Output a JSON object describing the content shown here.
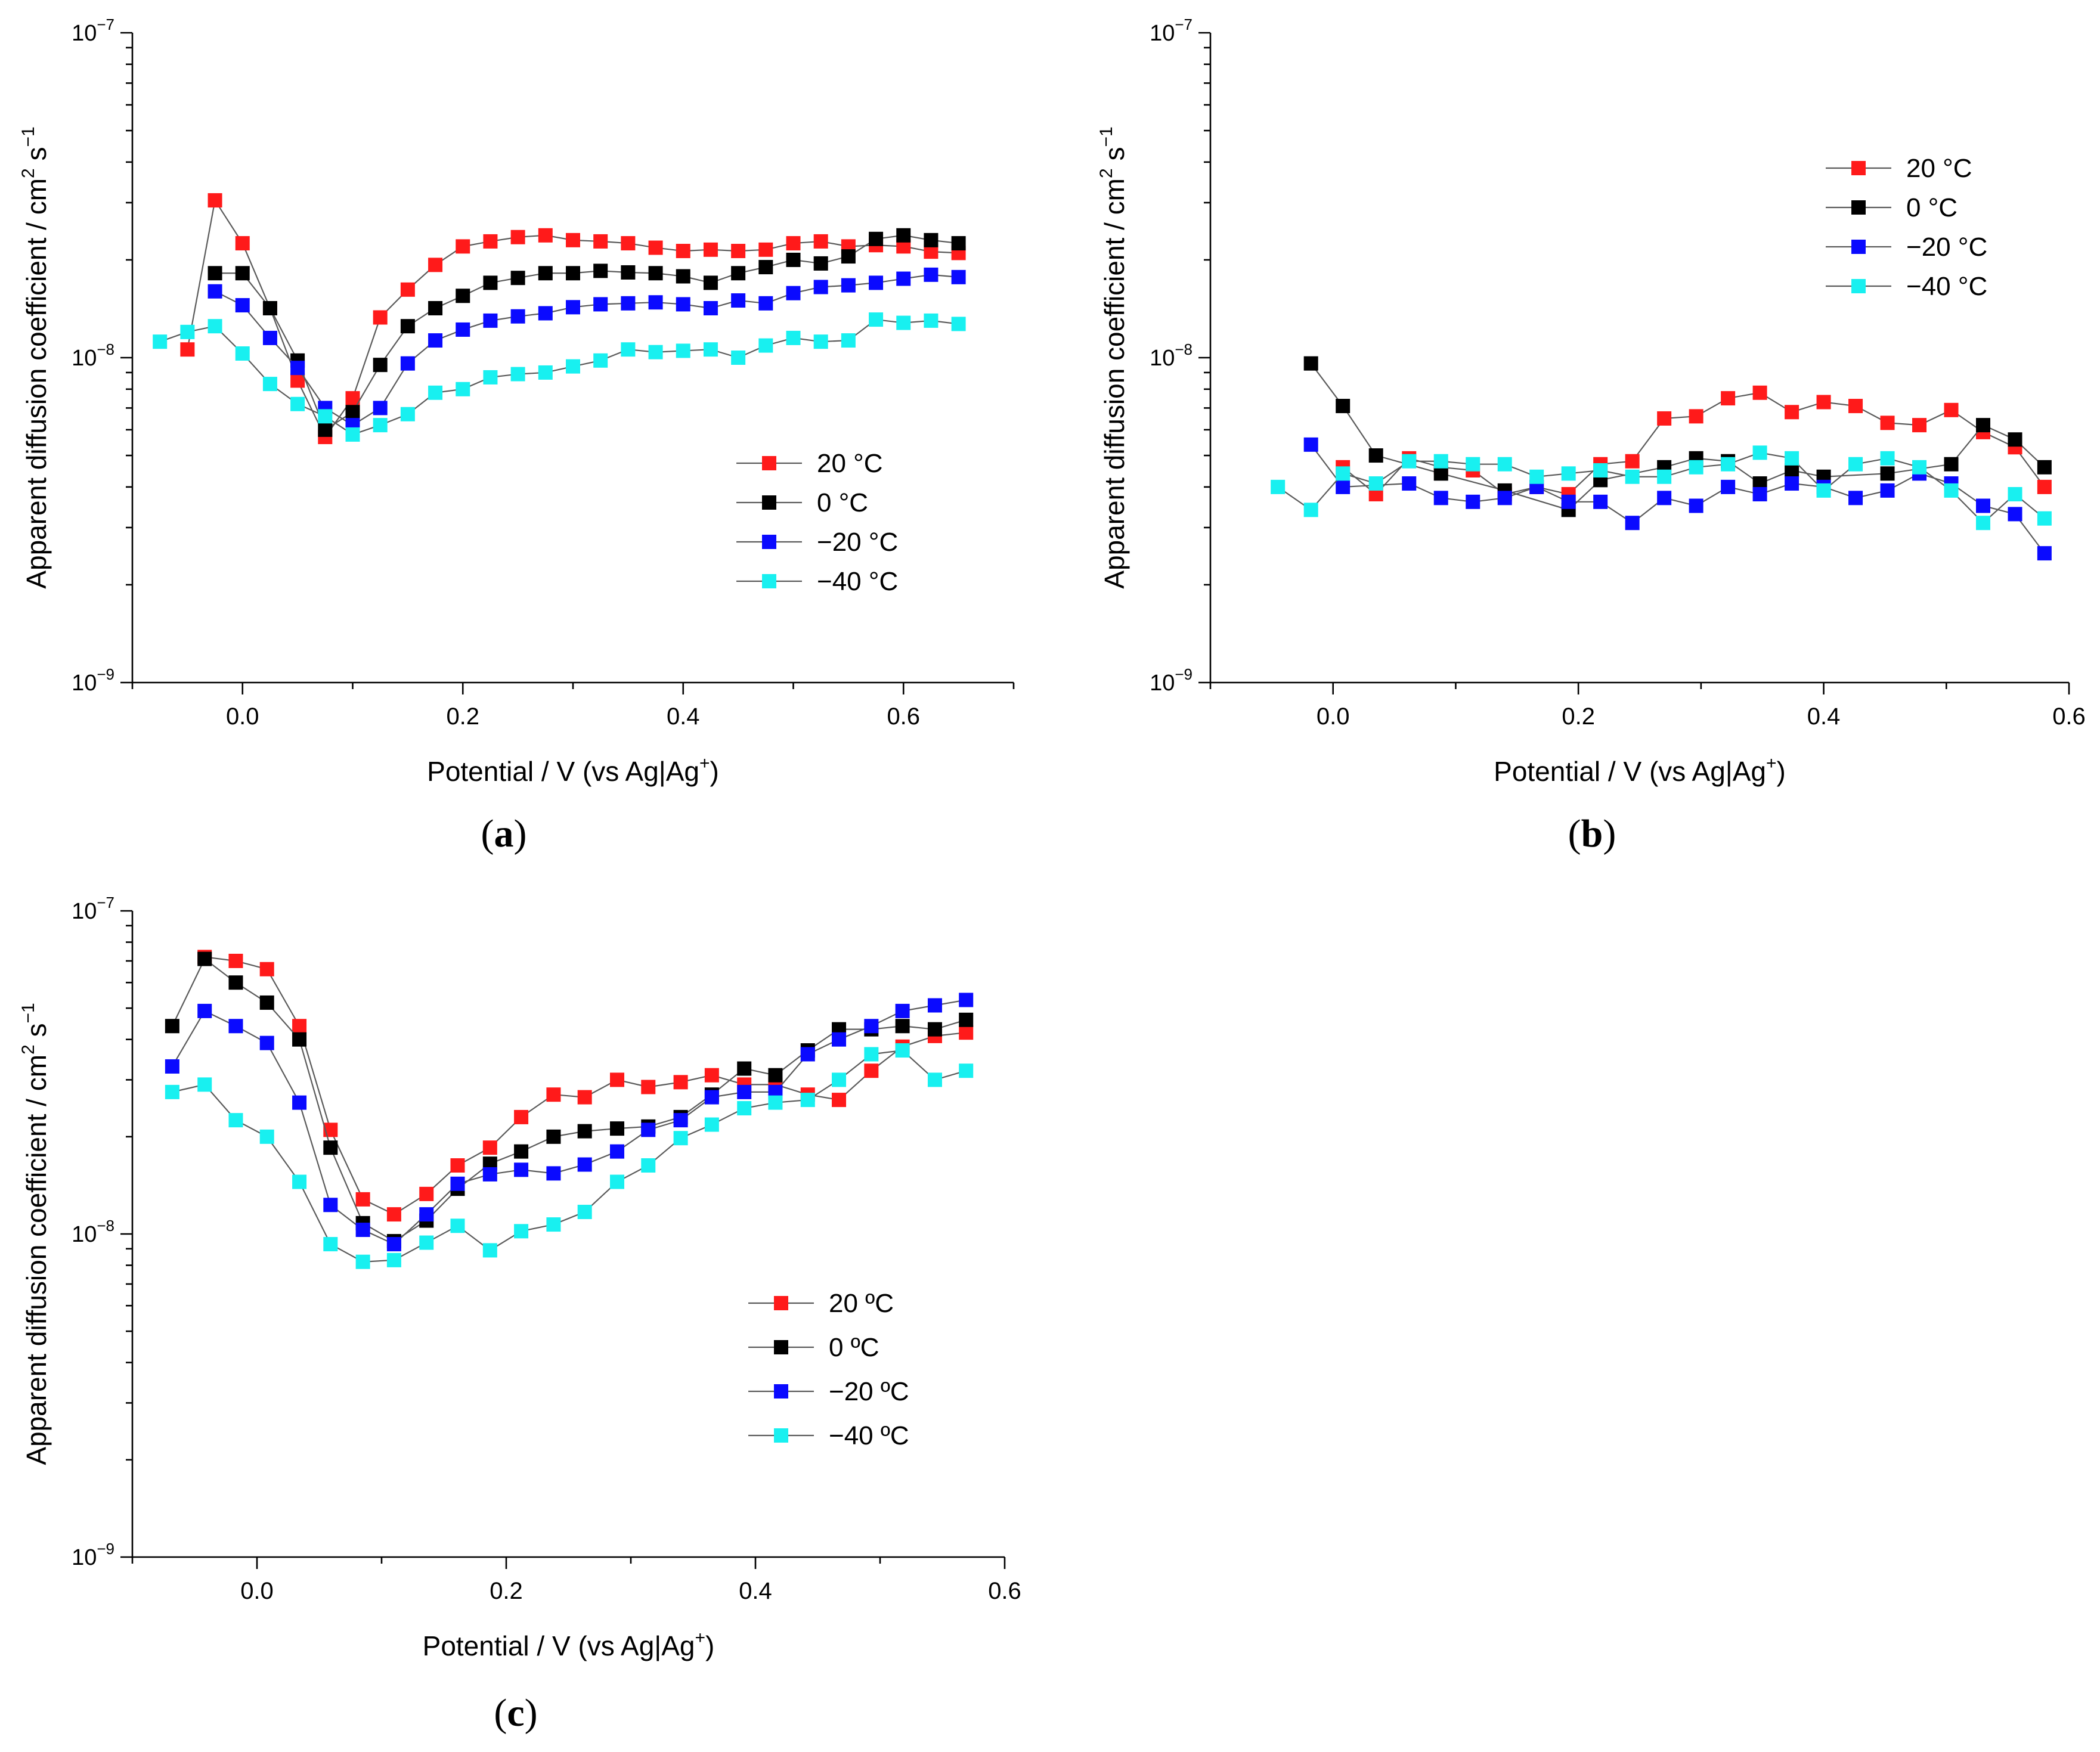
{
  "figure": {
    "y_unit_suffix": "cm² s⁻¹",
    "exponent_prefix": "10"
  },
  "chart_data": [
    {
      "type": "scatter",
      "panel_label": "(a)",
      "label_letter": "a",
      "xlabel_main": "Potential / V (vs Ag|Ag",
      "xlabel_sup": "+",
      "xlabel_tail": ")",
      "ylabel_main": "Apparent diffusion coefficient / cm",
      "ylabel_sup1": "2",
      "ylabel_mid": " s",
      "ylabel_sup2": "−1",
      "xlim": [
        -0.1,
        0.7
      ],
      "ylim": [
        1e-09,
        1e-07
      ],
      "yscale": "log",
      "xticks": [
        0.0,
        0.2,
        0.4,
        0.6
      ],
      "xtick_labels": [
        "0.0",
        "0.2",
        "0.4",
        "0.6"
      ],
      "yticks": [
        -9,
        -8,
        -7
      ],
      "ytick_exponent_labels": [
        "−9",
        "−8",
        "−7"
      ],
      "legend": [
        "20 °C",
        "0 °C",
        "−20 °C",
        "−40 °C"
      ],
      "legend_position": "center-right",
      "series": [
        {
          "name": "20 °C",
          "color": "#ff1a1a",
          "x": [
            -0.05,
            -0.025,
            0.0,
            0.025,
            0.05,
            0.075,
            0.1,
            0.125,
            0.15,
            0.175,
            0.2,
            0.225,
            0.25,
            0.275,
            0.3,
            0.325,
            0.35,
            0.375,
            0.4,
            0.425,
            0.45,
            0.475,
            0.5,
            0.525,
            0.55,
            0.575,
            0.6,
            0.625,
            0.65
          ],
          "y": [
            1.06e-08,
            3.05e-08,
            2.25e-08,
            1.42e-08,
            8.5e-09,
            5.7e-09,
            7.5e-09,
            1.33e-08,
            1.62e-08,
            1.93e-08,
            2.2e-08,
            2.28e-08,
            2.35e-08,
            2.38e-08,
            2.3e-08,
            2.28e-08,
            2.25e-08,
            2.18e-08,
            2.13e-08,
            2.15e-08,
            2.13e-08,
            2.15e-08,
            2.25e-08,
            2.28e-08,
            2.2e-08,
            2.22e-08,
            2.2e-08,
            2.12e-08,
            2.1e-08
          ]
        },
        {
          "name": "0 °C",
          "color": "#000000",
          "x": [
            -0.025,
            0.0,
            0.025,
            0.05,
            0.075,
            0.1,
            0.125,
            0.15,
            0.175,
            0.2,
            0.225,
            0.25,
            0.275,
            0.3,
            0.325,
            0.35,
            0.375,
            0.4,
            0.425,
            0.45,
            0.475,
            0.5,
            0.525,
            0.55,
            0.575,
            0.6,
            0.625,
            0.65
          ],
          "y": [
            1.82e-08,
            1.82e-08,
            1.42e-08,
            9.8e-09,
            6e-09,
            6.8e-09,
            9.5e-09,
            1.25e-08,
            1.42e-08,
            1.55e-08,
            1.7e-08,
            1.76e-08,
            1.82e-08,
            1.82e-08,
            1.85e-08,
            1.83e-08,
            1.82e-08,
            1.78e-08,
            1.7e-08,
            1.82e-08,
            1.9e-08,
            2e-08,
            1.95e-08,
            2.05e-08,
            2.32e-08,
            2.38e-08,
            2.3e-08,
            2.25e-08
          ]
        },
        {
          "name": "−20 °C",
          "color": "#0a0aff",
          "x": [
            -0.025,
            0.0,
            0.025,
            0.05,
            0.075,
            0.1,
            0.125,
            0.15,
            0.175,
            0.2,
            0.225,
            0.25,
            0.275,
            0.3,
            0.325,
            0.35,
            0.375,
            0.4,
            0.425,
            0.45,
            0.475,
            0.5,
            0.525,
            0.55,
            0.575,
            0.6,
            0.625,
            0.65
          ],
          "y": [
            1.6e-08,
            1.45e-08,
            1.15e-08,
            9.3e-09,
            7e-09,
            6.2e-09,
            7e-09,
            9.6e-09,
            1.13e-08,
            1.22e-08,
            1.3e-08,
            1.34e-08,
            1.37e-08,
            1.43e-08,
            1.46e-08,
            1.47e-08,
            1.48e-08,
            1.46e-08,
            1.42e-08,
            1.5e-08,
            1.47e-08,
            1.58e-08,
            1.65e-08,
            1.67e-08,
            1.7e-08,
            1.75e-08,
            1.8e-08,
            1.77e-08
          ]
        },
        {
          "name": "−40 °C",
          "color": "#18f0f0",
          "x": [
            -0.075,
            -0.05,
            -0.025,
            0.0,
            0.025,
            0.05,
            0.075,
            0.1,
            0.125,
            0.15,
            0.175,
            0.2,
            0.225,
            0.25,
            0.275,
            0.3,
            0.325,
            0.35,
            0.375,
            0.4,
            0.425,
            0.45,
            0.475,
            0.5,
            0.525,
            0.55,
            0.575,
            0.6,
            0.625,
            0.65
          ],
          "y": [
            1.12e-08,
            1.2e-08,
            1.25e-08,
            1.03e-08,
            8.3e-09,
            7.2e-09,
            6.6e-09,
            5.8e-09,
            6.2e-09,
            6.7e-09,
            7.8e-09,
            8e-09,
            8.7e-09,
            8.9e-09,
            9e-09,
            9.4e-09,
            9.8e-09,
            1.06e-08,
            1.04e-08,
            1.05e-08,
            1.06e-08,
            1e-08,
            1.09e-08,
            1.15e-08,
            1.12e-08,
            1.13e-08,
            1.31e-08,
            1.28e-08,
            1.3e-08,
            1.27e-08
          ]
        }
      ]
    },
    {
      "type": "scatter",
      "panel_label": "(b)",
      "label_letter": "b",
      "xlabel_main": "Potential / V (vs Ag|Ag",
      "xlabel_sup": "+",
      "xlabel_tail": ")",
      "ylabel_main": "Apparent diffusion coefficient / cm",
      "ylabel_sup1": "2",
      "ylabel_mid": " s",
      "ylabel_sup2": "−1",
      "xlim": [
        -0.1,
        0.6
      ],
      "ylim": [
        1e-09,
        1e-07
      ],
      "yscale": "log",
      "xticks": [
        0.0,
        0.2,
        0.4,
        0.6
      ],
      "xtick_labels": [
        "0.0",
        "0.2",
        "0.4",
        "0.6"
      ],
      "yticks": [
        -9,
        -8,
        -7
      ],
      "ytick_exponent_labels": [
        "−9",
        "−8",
        "−7"
      ],
      "legend": [
        "20 °C",
        "0 °C",
        "−20 °C",
        "−40 °C"
      ],
      "legend_position": "top-right",
      "series": [
        {
          "name": "20 °C",
          "color": "#ff1a1a",
          "x": [
            0.008,
            0.035,
            0.062,
            0.088,
            0.114,
            0.14,
            0.166,
            0.192,
            0.218,
            0.244,
            0.27,
            0.296,
            0.322,
            0.348,
            0.374,
            0.4,
            0.426,
            0.452,
            0.478,
            0.504,
            0.53,
            0.556,
            0.58
          ],
          "y": [
            4.6e-09,
            3.8e-09,
            4.9e-09,
            4.6e-09,
            4.5e-09,
            3.8e-09,
            4e-09,
            3.8e-09,
            4.7e-09,
            4.8e-09,
            6.5e-09,
            6.6e-09,
            7.5e-09,
            7.8e-09,
            6.8e-09,
            7.3e-09,
            7.1e-09,
            6.3e-09,
            6.2e-09,
            6.9e-09,
            5.9e-09,
            5.3e-09,
            4e-09
          ]
        },
        {
          "name": "0 °C",
          "color": "#000000",
          "x": [
            -0.018,
            0.008,
            0.035,
            0.088,
            0.14,
            0.192,
            0.218,
            0.27,
            0.296,
            0.322,
            0.348,
            0.374,
            0.4,
            0.452,
            0.504,
            0.53,
            0.556,
            0.58
          ],
          "y": [
            9.6e-09,
            7.1e-09,
            5e-09,
            4.4e-09,
            3.9e-09,
            3.4e-09,
            4.2e-09,
            4.6e-09,
            4.9e-09,
            4.8e-09,
            4.1e-09,
            4.5e-09,
            4.3e-09,
            4.4e-09,
            4.7e-09,
            6.2e-09,
            5.6e-09,
            4.6e-09
          ]
        },
        {
          "name": "−20 °C",
          "color": "#0a0aff",
          "x": [
            -0.018,
            0.008,
            0.062,
            0.088,
            0.114,
            0.14,
            0.166,
            0.192,
            0.218,
            0.244,
            0.27,
            0.296,
            0.322,
            0.348,
            0.374,
            0.4,
            0.426,
            0.452,
            0.478,
            0.504,
            0.53,
            0.556,
            0.58
          ],
          "y": [
            5.4e-09,
            4e-09,
            4.1e-09,
            3.7e-09,
            3.6e-09,
            3.7e-09,
            4e-09,
            3.6e-09,
            3.6e-09,
            3.1e-09,
            3.7e-09,
            3.5e-09,
            4e-09,
            3.8e-09,
            4.1e-09,
            4e-09,
            3.7e-09,
            3.9e-09,
            4.4e-09,
            4.1e-09,
            3.5e-09,
            3.3e-09,
            2.5e-09
          ]
        },
        {
          "name": "−40 °C",
          "color": "#18f0f0",
          "x": [
            -0.045,
            -0.018,
            0.008,
            0.035,
            0.062,
            0.088,
            0.114,
            0.14,
            0.166,
            0.192,
            0.218,
            0.244,
            0.27,
            0.296,
            0.322,
            0.348,
            0.374,
            0.4,
            0.426,
            0.452,
            0.478,
            0.504,
            0.53,
            0.556,
            0.58
          ],
          "y": [
            4e-09,
            3.4e-09,
            4.4e-09,
            4.1e-09,
            4.8e-09,
            4.8e-09,
            4.7e-09,
            4.7e-09,
            4.3e-09,
            4.4e-09,
            4.5e-09,
            4.3e-09,
            4.3e-09,
            4.6e-09,
            4.7e-09,
            5.1e-09,
            4.9e-09,
            3.9e-09,
            4.7e-09,
            4.9e-09,
            4.6e-09,
            3.9e-09,
            3.1e-09,
            3.8e-09,
            3.2e-09
          ]
        }
      ]
    },
    {
      "type": "scatter",
      "panel_label": "(c)",
      "label_letter": "c",
      "xlabel_main": "Potential / V (vs Ag|Ag",
      "xlabel_sup": "+",
      "xlabel_tail": ")",
      "ylabel_main": "Apparent diffusion coefficient / cm",
      "ylabel_sup1": "2",
      "ylabel_mid": " s",
      "ylabel_sup2": "−1",
      "xlim": [
        -0.1,
        0.6
      ],
      "ylim": [
        1e-09,
        1e-07
      ],
      "yscale": "log",
      "xticks": [
        0.0,
        0.2,
        0.4,
        0.6
      ],
      "xtick_labels": [
        "0.0",
        "0.2",
        "0.4",
        "0.6"
      ],
      "yticks": [
        -9,
        -8,
        -7
      ],
      "ytick_exponent_labels": [
        "−9",
        "−8",
        "−7"
      ],
      "legend": [
        "20 ºC",
        "0 ºC",
        "−20 ºC",
        "−40 ºC"
      ],
      "legend_position": "center",
      "series": [
        {
          "name": "20 ºC",
          "color": "#ff1a1a",
          "x": [
            -0.042,
            -0.017,
            0.008,
            0.034,
            0.059,
            0.085,
            0.11,
            0.136,
            0.161,
            0.187,
            0.212,
            0.238,
            0.263,
            0.289,
            0.314,
            0.34,
            0.365,
            0.391,
            0.416,
            0.442,
            0.467,
            0.493,
            0.518,
            0.544,
            0.569
          ],
          "y": [
            7.2e-08,
            7e-08,
            6.6e-08,
            4.4e-08,
            2.1e-08,
            1.28e-08,
            1.15e-08,
            1.33e-08,
            1.63e-08,
            1.85e-08,
            2.3e-08,
            2.7e-08,
            2.65e-08,
            3e-08,
            2.85e-08,
            2.95e-08,
            3.1e-08,
            2.9e-08,
            2.9e-08,
            2.7e-08,
            2.6e-08,
            3.2e-08,
            3.8e-08,
            4.1e-08,
            4.2e-08
          ]
        },
        {
          "name": "0 ºC",
          "color": "#000000",
          "x": [
            -0.068,
            -0.042,
            -0.017,
            0.008,
            0.034,
            0.059,
            0.085,
            0.11,
            0.136,
            0.161,
            0.187,
            0.212,
            0.238,
            0.263,
            0.289,
            0.314,
            0.34,
            0.365,
            0.391,
            0.416,
            0.442,
            0.467,
            0.493,
            0.518,
            0.544,
            0.569
          ],
          "y": [
            4.4e-08,
            7.1e-08,
            6e-08,
            5.2e-08,
            4e-08,
            1.85e-08,
            1.08e-08,
            9.5e-09,
            1.1e-08,
            1.38e-08,
            1.65e-08,
            1.8e-08,
            2e-08,
            2.08e-08,
            2.12e-08,
            2.15e-08,
            2.3e-08,
            2.7e-08,
            3.25e-08,
            3.1e-08,
            3.7e-08,
            4.3e-08,
            4.3e-08,
            4.4e-08,
            4.3e-08,
            4.6e-08
          ]
        },
        {
          "name": "−20 ºC",
          "color": "#0a0aff",
          "x": [
            -0.068,
            -0.042,
            -0.017,
            0.008,
            0.034,
            0.059,
            0.085,
            0.11,
            0.136,
            0.161,
            0.187,
            0.212,
            0.238,
            0.263,
            0.289,
            0.314,
            0.34,
            0.365,
            0.391,
            0.416,
            0.442,
            0.467,
            0.493,
            0.518,
            0.544,
            0.569
          ],
          "y": [
            3.3e-08,
            4.9e-08,
            4.4e-08,
            3.9e-08,
            2.55e-08,
            1.23e-08,
            1.03e-08,
            9.3e-09,
            1.15e-08,
            1.43e-08,
            1.53e-08,
            1.58e-08,
            1.54e-08,
            1.64e-08,
            1.8e-08,
            2.1e-08,
            2.25e-08,
            2.65e-08,
            2.75e-08,
            2.75e-08,
            3.6e-08,
            4e-08,
            4.4e-08,
            4.9e-08,
            5.1e-08,
            5.3e-08
          ]
        },
        {
          "name": "−40 ºC",
          "color": "#18f0f0",
          "x": [
            -0.068,
            -0.042,
            -0.017,
            0.008,
            0.034,
            0.059,
            0.085,
            0.11,
            0.136,
            0.161,
            0.187,
            0.212,
            0.238,
            0.263,
            0.289,
            0.314,
            0.34,
            0.365,
            0.391,
            0.416,
            0.442,
            0.467,
            0.493,
            0.518,
            0.544,
            0.569
          ],
          "y": [
            2.75e-08,
            2.9e-08,
            2.25e-08,
            2e-08,
            1.45e-08,
            9.3e-09,
            8.2e-09,
            8.3e-09,
            9.4e-09,
            1.06e-08,
            8.9e-09,
            1.02e-08,
            1.07e-08,
            1.17e-08,
            1.45e-08,
            1.63e-08,
            1.98e-08,
            2.18e-08,
            2.45e-08,
            2.55e-08,
            2.6e-08,
            3e-08,
            3.6e-08,
            3.7e-08,
            3e-08,
            3.2e-08
          ]
        }
      ]
    }
  ]
}
